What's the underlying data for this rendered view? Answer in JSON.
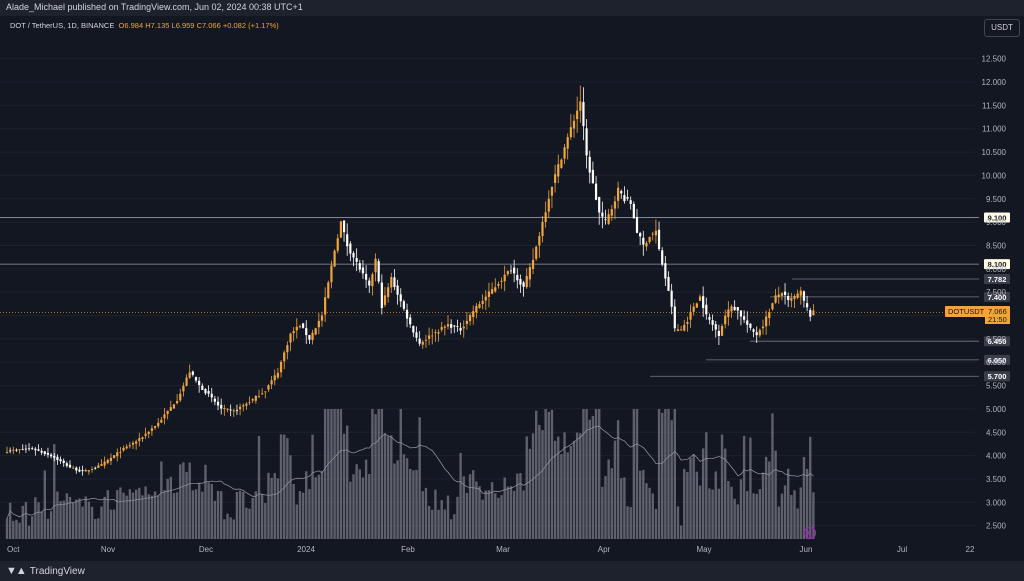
{
  "header": {
    "publisher_line": "Alade_Michael published on TradingView.com, Jun 02, 2024 00:38 UTC+1"
  },
  "legend": {
    "symbol": "DOT / TetherUS, 1D, BINANCE",
    "open_label": "O",
    "open": "6.984",
    "high_label": "H",
    "high": "7.135",
    "low_label": "L",
    "low": "6.959",
    "close_label": "C",
    "close": "7.066",
    "change": "+0.082 (+1.17%)"
  },
  "currency_button": "USDT",
  "footer": {
    "brand": "TradingView"
  },
  "price_tag": {
    "symbol": "DOTUSDT",
    "price": "7.066",
    "countdown": "21:50"
  },
  "colors": {
    "up": "#f0a53a",
    "down": "#ffffff",
    "bg": "#131722",
    "line": "#9598a1",
    "volume": "#787b86"
  },
  "chart_data": {
    "type": "candlestick",
    "y_axis": {
      "range": [
        2.3,
        12.9
      ],
      "ticks": [
        "2.500",
        "3.000",
        "3.500",
        "4.000",
        "4.500",
        "5.000",
        "5.500",
        "6.000",
        "6.500",
        "7.000",
        "7.500",
        "8.000",
        "8.500",
        "9.000",
        "9.500",
        "10.000",
        "10.500",
        "11.000",
        "11.500",
        "12.000",
        "12.500"
      ]
    },
    "x_axis": {
      "labels": [
        "Oct",
        "Nov",
        "Dec",
        "2024",
        "Feb",
        "Mar",
        "Apr",
        "May",
        "Jun",
        "Jul",
        "22"
      ]
    },
    "levels": [
      {
        "label": "9.100",
        "value": 9.1,
        "extends": "full",
        "style": "white"
      },
      {
        "label": "8.100",
        "value": 8.1,
        "extends": "full",
        "style": "white"
      },
      {
        "label": "7.782",
        "value": 7.782,
        "extends": "partial",
        "style": "grey"
      },
      {
        "label": "7.400",
        "value": 7.4,
        "extends": "partial",
        "style": "grey"
      },
      {
        "label": "6.450",
        "value": 6.45,
        "extends": "partial",
        "style": "grey"
      },
      {
        "label": "6.050",
        "value": 6.05,
        "extends": "partial",
        "style": "grey"
      },
      {
        "label": "5.700",
        "value": 5.7,
        "extends": "partial",
        "style": "grey"
      }
    ],
    "close_path": [
      [
        0,
        4.1
      ],
      [
        8,
        4.15
      ],
      [
        14,
        4.0
      ],
      [
        20,
        3.75
      ],
      [
        24,
        3.65
      ],
      [
        30,
        3.8
      ],
      [
        36,
        4.1
      ],
      [
        42,
        4.35
      ],
      [
        48,
        4.7
      ],
      [
        54,
        5.2
      ],
      [
        58,
        5.8
      ],
      [
        61,
        5.5
      ],
      [
        64,
        5.3
      ],
      [
        68,
        5.0
      ],
      [
        72,
        4.95
      ],
      [
        78,
        5.2
      ],
      [
        82,
        5.4
      ],
      [
        86,
        5.8
      ],
      [
        90,
        6.6
      ],
      [
        93,
        6.8
      ],
      [
        96,
        6.5
      ],
      [
        100,
        7.0
      ],
      [
        104,
        8.4
      ],
      [
        106,
        9.0
      ],
      [
        108,
        8.5
      ],
      [
        112,
        8.0
      ],
      [
        115,
        7.6
      ],
      [
        117,
        8.2
      ],
      [
        119,
        7.2
      ],
      [
        122,
        7.8
      ],
      [
        125,
        7.3
      ],
      [
        128,
        6.8
      ],
      [
        131,
        6.4
      ],
      [
        135,
        6.6
      ],
      [
        140,
        6.8
      ],
      [
        144,
        6.7
      ],
      [
        148,
        7.1
      ],
      [
        152,
        7.4
      ],
      [
        156,
        7.7
      ],
      [
        160,
        8.0
      ],
      [
        164,
        7.6
      ],
      [
        167,
        8.2
      ],
      [
        170,
        9.0
      ],
      [
        173,
        9.8
      ],
      [
        176,
        10.4
      ],
      [
        178,
        10.8
      ],
      [
        180,
        11.2
      ],
      [
        182,
        11.6
      ],
      [
        184,
        10.4
      ],
      [
        186,
        9.8
      ],
      [
        188,
        9.2
      ],
      [
        190,
        9.0
      ],
      [
        192,
        9.3
      ],
      [
        194,
        9.7
      ],
      [
        196,
        9.5
      ],
      [
        198,
        9.4
      ],
      [
        200,
        8.8
      ],
      [
        202,
        8.5
      ],
      [
        204,
        8.7
      ],
      [
        206,
        8.8
      ],
      [
        207,
        8.4
      ],
      [
        209,
        7.8
      ],
      [
        211,
        7.2
      ],
      [
        212,
        6.7
      ],
      [
        214,
        6.7
      ],
      [
        216,
        6.9
      ],
      [
        218,
        7.2
      ],
      [
        220,
        7.4
      ],
      [
        222,
        7.0
      ],
      [
        224,
        6.8
      ],
      [
        226,
        6.6
      ],
      [
        228,
        7.0
      ],
      [
        230,
        7.2
      ],
      [
        232,
        7.1
      ],
      [
        234,
        6.9
      ],
      [
        236,
        6.7
      ],
      [
        238,
        6.6
      ],
      [
        240,
        6.8
      ],
      [
        242,
        7.1
      ],
      [
        244,
        7.4
      ],
      [
        246,
        7.5
      ],
      [
        248,
        7.3
      ],
      [
        250,
        7.4
      ],
      [
        252,
        7.5
      ],
      [
        253,
        7.3
      ],
      [
        254,
        7.15
      ],
      [
        255,
        7.0
      ],
      [
        256,
        7.066
      ]
    ]
  }
}
